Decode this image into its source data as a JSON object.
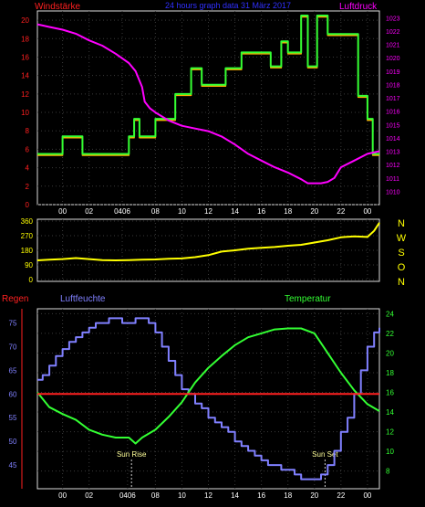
{
  "chart_data": [
    {
      "type": "line",
      "title": "24 hours graph data  31 März 2017",
      "left_axis_label": "Windstärke",
      "right_axis_label": "Luftdruck",
      "left_axis": {
        "ylim": [
          0,
          21
        ],
        "ticks": [
          "0",
          "2",
          "4",
          "6",
          "8",
          "10",
          "12",
          "14",
          "16",
          "18",
          "20"
        ]
      },
      "right_axis": {
        "ylim": [
          1009,
          1023.5
        ],
        "ticks": [
          "1010",
          "1011",
          "1012",
          "1013",
          "1014",
          "1015",
          "1016",
          "1017",
          "1018",
          "1019",
          "1020",
          "1021",
          "1022",
          "1023"
        ]
      },
      "x_ticks": [
        "00",
        "02",
        "0406",
        "08",
        "10",
        "12",
        "14",
        "16",
        "18",
        "20",
        "22",
        "00"
      ],
      "grid": true,
      "colors": {
        "wind_avg": "#ffb000",
        "wind_gust": "#33ff33",
        "pressure": "#ff00ff",
        "left_axis": "#ff2020",
        "right_axis": "#ff00ff",
        "title": "#3030ff"
      },
      "series": [
        {
          "key": "wind_gust",
          "x": [
            -1.9,
            0,
            0,
            1.5,
            1.5,
            5,
            5,
            5.4,
            5.4,
            5.8,
            5.8,
            7,
            7,
            8.5,
            8.5,
            9.7,
            9.7,
            10.5,
            10.5,
            12.3,
            12.3,
            13.5,
            13.5,
            15.7,
            15.7,
            16.5,
            16.5,
            17,
            17,
            18,
            18,
            18.5,
            18.5,
            19.2,
            19.2,
            20,
            20,
            22.3,
            22.3,
            23,
            23,
            23.4,
            23.4,
            23.9
          ],
          "y": [
            5.5,
            5.5,
            7.4,
            7.4,
            5.5,
            5.5,
            7.4,
            7.4,
            9.3,
            9.3,
            7.4,
            7.4,
            9.3,
            9.3,
            12,
            12,
            14.8,
            14.8,
            13,
            13,
            14.8,
            14.8,
            16.5,
            16.5,
            15,
            15,
            17.7,
            17.7,
            16.5,
            16.5,
            20.5,
            20.5,
            15,
            15,
            20.5,
            20.5,
            18.5,
            18.5,
            11.8,
            11.8,
            9.3,
            9.3,
            5.5,
            5.5
          ]
        },
        {
          "key": "pressure",
          "x": [
            -1.9,
            -1,
            0,
            1,
            2,
            3,
            4,
            5,
            5.5,
            6,
            6.2,
            6.6,
            7,
            8,
            9,
            10,
            11,
            12,
            13,
            14,
            15,
            16,
            17,
            18,
            18.5,
            19,
            19.5,
            20,
            20.5,
            21,
            22,
            23,
            23.9
          ],
          "y": [
            1022.5,
            1022.3,
            1022.1,
            1021.8,
            1021.3,
            1020.9,
            1020.3,
            1019.6,
            1019,
            1017.8,
            1016.7,
            1016.2,
            1015.9,
            1015.3,
            1014.9,
            1014.7,
            1014.5,
            1014.1,
            1013.5,
            1012.8,
            1012.3,
            1011.8,
            1011.4,
            1010.9,
            1010.6,
            1010.6,
            1010.6,
            1010.7,
            1011,
            1011.8,
            1012.3,
            1012.8,
            1013
          ]
        }
      ]
    },
    {
      "type": "line",
      "series_name": "Windrichtung",
      "ylim": [
        0,
        360
      ],
      "y_ticks": [
        "0",
        "90",
        "180",
        "270",
        "360"
      ],
      "direction_labels": [
        "N",
        "W",
        "S",
        "O",
        "N"
      ],
      "color": "#ffff00",
      "x": [
        -1.9,
        -1,
        0,
        1,
        2,
        3,
        4,
        5,
        6,
        7,
        8,
        9,
        10,
        11,
        12,
        13,
        14,
        15,
        16,
        17,
        18,
        19,
        20,
        21,
        22,
        23,
        23.5,
        23.9
      ],
      "y": [
        118,
        122,
        126,
        132,
        126,
        120,
        118,
        120,
        122,
        124,
        128,
        130,
        138,
        150,
        172,
        180,
        190,
        195,
        200,
        208,
        214,
        228,
        242,
        260,
        266,
        262,
        300,
        350
      ]
    },
    {
      "type": "line",
      "labels": {
        "rain": "Regen",
        "humidity": "Luftfeuchte",
        "temperature": "Temperatur",
        "sunrise": "Sun Rise",
        "sunset": "Sun Set"
      },
      "humidity_axis": {
        "ylim": [
          40,
          78
        ],
        "ticks": [
          "45",
          "50",
          "55",
          "60",
          "65",
          "70",
          "75"
        ]
      },
      "temperature_axis": {
        "ylim": [
          6.2,
          24.5
        ],
        "ticks": [
          "8",
          "10",
          "12",
          "14",
          "16",
          "18",
          "20",
          "22",
          "24"
        ]
      },
      "x_ticks": [
        "00",
        "02",
        "0406",
        "08",
        "10",
        "12",
        "14",
        "16",
        "18",
        "20",
        "22",
        "00"
      ],
      "sunrise_hour": 5.2,
      "sunset_hour": 19.8,
      "colors": {
        "humidity": "#8080ff",
        "temperature": "#33ff33",
        "rain": "#ff2020"
      },
      "series": [
        {
          "key": "humidity",
          "x": [
            -1.9,
            -1.5,
            -1,
            -0.5,
            0,
            0.5,
            1,
            1.5,
            2,
            2.5,
            3,
            3.5,
            4,
            4.5,
            5,
            5.5,
            6,
            6.5,
            7,
            7.5,
            8,
            8.5,
            9,
            9.5,
            10,
            10.5,
            11,
            11.5,
            12,
            12.5,
            13,
            13.5,
            14,
            14.5,
            15,
            15.5,
            16,
            16.5,
            17,
            17.5,
            18,
            18.5,
            19,
            19.5,
            20,
            20.5,
            21,
            21.5,
            22,
            22.5,
            23,
            23.5,
            23.9
          ],
          "y": [
            63,
            64,
            66,
            68,
            69.5,
            71,
            72,
            73,
            74,
            75,
            75,
            76,
            76,
            75,
            75,
            76,
            76,
            75,
            73,
            70,
            67,
            64,
            61,
            60,
            58,
            57,
            55,
            54,
            53,
            52,
            50,
            49,
            48,
            47,
            46,
            45,
            45,
            44,
            44,
            43,
            42,
            42,
            42,
            43,
            45,
            48,
            52,
            55,
            60,
            65,
            70,
            73,
            74
          ]
        },
        {
          "key": "temperature",
          "x": [
            -1.9,
            -1,
            0,
            1,
            2,
            3,
            4,
            5,
            5.5,
            6,
            7,
            8,
            9,
            10,
            11,
            12,
            13,
            14,
            15,
            16,
            17,
            18,
            19,
            20,
            21,
            22,
            23,
            23.9
          ],
          "y": [
            16,
            14.5,
            13.8,
            13.2,
            12.2,
            11.7,
            11.4,
            11.4,
            10.8,
            11.4,
            12.2,
            13.5,
            15,
            17,
            18.5,
            19.7,
            20.8,
            21.6,
            22,
            22.4,
            22.5,
            22.5,
            22,
            20,
            18,
            16.2,
            14.8,
            14.1
          ]
        },
        {
          "key": "rain",
          "x": [
            -1.9,
            23.9
          ],
          "y": [
            60,
            60
          ]
        }
      ]
    }
  ]
}
